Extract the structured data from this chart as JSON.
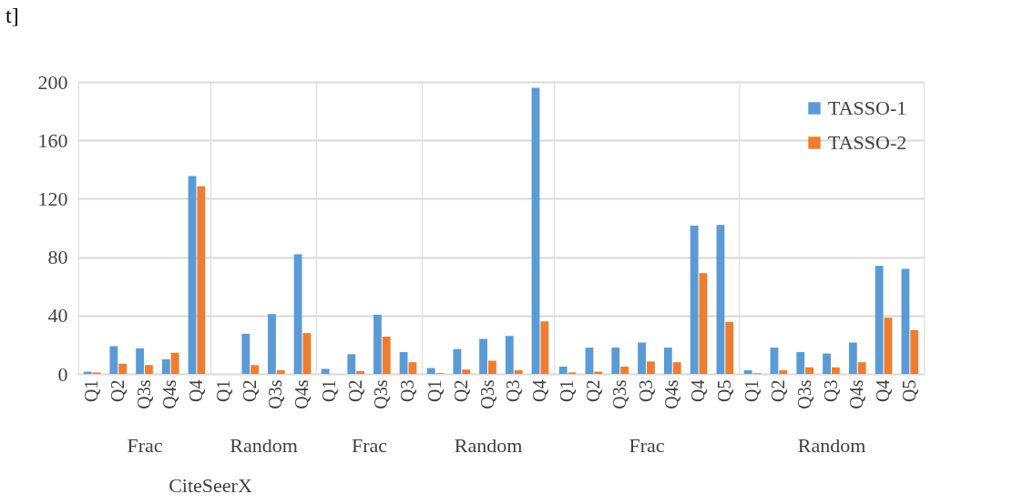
{
  "chart_data": [
    {
      "type": "bar",
      "xlabel": "Frac",
      "categories": [
        "Q1",
        "Q2",
        "Q3s",
        "Q4s",
        "Q4"
      ],
      "series": [
        {
          "color": "#5b9bd5",
          "values": [
            1.5,
            19,
            17.5,
            10,
            135.5
          ]
        },
        {
          "color": "#ed7d31",
          "values": [
            1,
            7,
            6,
            14.5,
            128.5
          ]
        }
      ],
      "ylim": [
        0,
        200
      ],
      "yticks": [
        0,
        40,
        80,
        120,
        160,
        200
      ],
      "grid": "y",
      "annotations": [
        "t]",
        "CiteSeerX"
      ]
    },
    {
      "type": "bar",
      "xlabel": "Random",
      "categories": [
        "Q1",
        "Q2",
        "Q3s",
        "Q4s"
      ],
      "series": [
        {
          "color": "#5b9bd5",
          "values": [
            null,
            27.5,
            41,
            82
          ]
        },
        {
          "color": "#ed7d31",
          "values": [
            0,
            6,
            2.5,
            28
          ]
        }
      ],
      "ylim": [
        0,
        200
      ],
      "yticks": [
        0,
        40,
        80,
        120,
        160,
        200
      ],
      "grid": "y",
      "tick_labels": "x"
    },
    {
      "type": "bar",
      "xlabel": "Frac",
      "categories": [
        "Q1",
        "Q2",
        "Q3s",
        "Q3"
      ],
      "series": [
        {
          "color": "#5b9bd5",
          "values": [
            3.5,
            13.5,
            40.5,
            15
          ]
        },
        {
          "color": "#ed7d31",
          "values": [
            0,
            2,
            25.5,
            8
          ]
        }
      ],
      "ylim": [
        0,
        200
      ],
      "yticks": [
        0,
        40,
        80,
        120,
        160,
        200
      ],
      "grid": "y",
      "tick_labels": "x"
    },
    {
      "type": "bar",
      "xlabel": "Random",
      "categories": [
        "Q1",
        "Q2",
        "Q3s",
        "Q3",
        "Q4"
      ],
      "series": [
        {
          "color": "#5b9bd5",
          "values": [
            4,
            17,
            24,
            26,
            196
          ]
        },
        {
          "color": "#ed7d31",
          "values": [
            0.5,
            3,
            9,
            2.5,
            36
          ]
        }
      ],
      "ylim": [
        0,
        200
      ],
      "yticks": [
        0,
        40,
        80,
        120,
        160,
        200
      ],
      "grid": "y",
      "tick_labels": "x"
    },
    {
      "type": "bar",
      "xlabel": "Frac",
      "categories": [
        "Q1",
        "Q2",
        "Q3s",
        "Q3",
        "Q4s",
        "Q4",
        "Q5"
      ],
      "series": [
        {
          "color": "#5b9bd5",
          "values": [
            5,
            18,
            18,
            21.5,
            18,
            101.5,
            102
          ]
        },
        {
          "color": "#ed7d31",
          "values": [
            1,
            1.5,
            5,
            8.5,
            8,
            69,
            35.5
          ]
        }
      ],
      "ylim": [
        0,
        200
      ],
      "yticks": [
        0,
        40,
        80,
        120,
        160,
        200
      ],
      "grid": "y",
      "tick_labels": "x"
    },
    {
      "type": "bar",
      "xlabel": "Random",
      "categories": [
        "Q1",
        "Q2",
        "Q3s",
        "Q3",
        "Q4s",
        "Q4",
        "Q5"
      ],
      "series": [
        {
          "name": "TASSO-1",
          "color": "#5b9bd5",
          "values": [
            2.5,
            18,
            15,
            14,
            21.5,
            74,
            72
          ]
        },
        {
          "name": "TASSO-2",
          "color": "#ed7d31",
          "values": [
            0.5,
            2.5,
            4.5,
            4.5,
            8,
            38.5,
            30
          ]
        }
      ],
      "ylim": [
        0,
        200
      ],
      "yticks": [
        0,
        40,
        80,
        120,
        160,
        200
      ],
      "grid": "y",
      "tick_labels": "x",
      "legend": "top right"
    }
  ]
}
